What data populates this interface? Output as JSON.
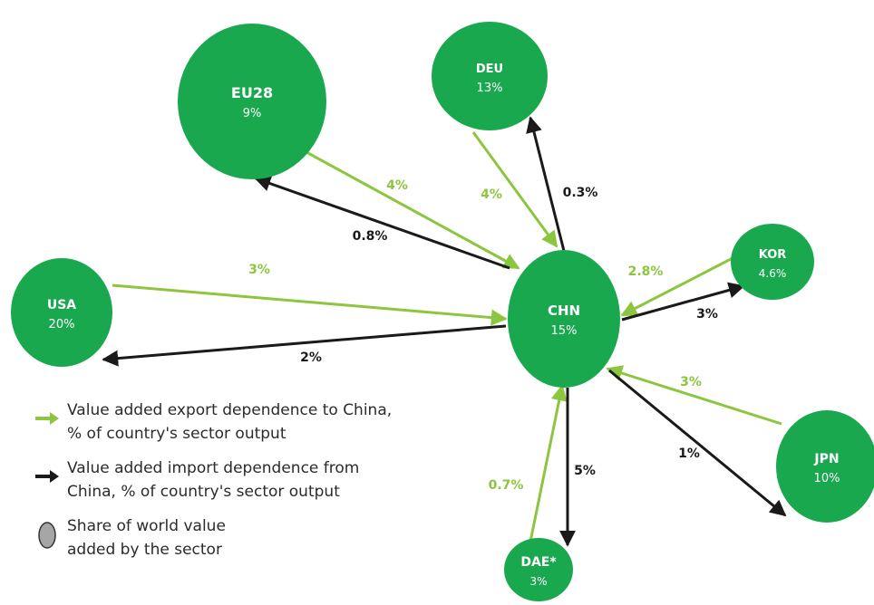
{
  "nodes": [
    {
      "id": "EU28",
      "name": "EU28",
      "share": "9%"
    },
    {
      "id": "DEU",
      "name": "DEU",
      "share": "13%"
    },
    {
      "id": "KOR",
      "name": "KOR",
      "share": "4.6%"
    },
    {
      "id": "USA",
      "name": "USA",
      "share": "20%"
    },
    {
      "id": "CHN",
      "name": "CHN",
      "share": "15%"
    },
    {
      "id": "JPN",
      "name": "JPN",
      "share": "10%"
    },
    {
      "id": "DAE",
      "name": "DAE*",
      "share": "3%"
    }
  ],
  "links": [
    {
      "country": "EU28",
      "type": "export",
      "value": "4%"
    },
    {
      "country": "EU28",
      "type": "import",
      "value": "0.8%"
    },
    {
      "country": "DEU",
      "type": "export",
      "value": "4%"
    },
    {
      "country": "DEU",
      "type": "import",
      "value": "0.3%"
    },
    {
      "country": "USA",
      "type": "export",
      "value": "3%"
    },
    {
      "country": "USA",
      "type": "import",
      "value": "2%"
    },
    {
      "country": "KOR",
      "type": "export",
      "value": "2.8%"
    },
    {
      "country": "KOR",
      "type": "import",
      "value": "3%"
    },
    {
      "country": "JPN",
      "type": "export",
      "value": "3%"
    },
    {
      "country": "JPN",
      "type": "import",
      "value": "1%"
    },
    {
      "country": "DAE",
      "type": "export",
      "value": "0.7%"
    },
    {
      "country": "DAE",
      "type": "import",
      "value": "5%"
    }
  ],
  "legend": {
    "export_label": "Value added export dependence to China,\n% of country's sector output",
    "import_label": "Value added import dependence from\nChina, % of country's sector output",
    "share_label": "Share of world value\nadded by the sector"
  },
  "colors": {
    "node_fill": "#1aa84f",
    "export_arrow": "#8cc63f",
    "import_arrow": "#1a1a1a",
    "legend_circle": "#a6a6a6"
  }
}
